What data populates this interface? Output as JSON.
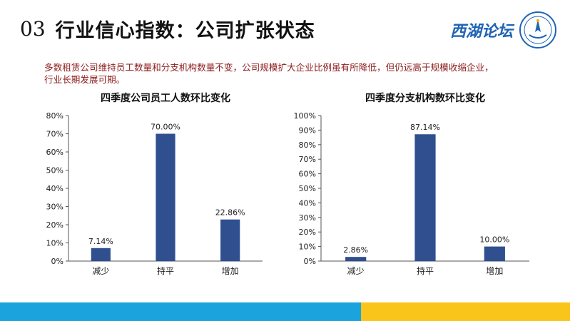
{
  "header": {
    "number": "03",
    "title": "行业信心指数：公司扩张状态",
    "logo_text": "西湖论坛"
  },
  "description": "多数租赁公司维持员工数量和分支机构数量不变，公司规模扩大企业比例虽有所降低，但仍远高于规模收缩企业，行业长期发展可期。",
  "colors": {
    "bar": "#2f4f8f",
    "footer_left": "#1aa3dc",
    "footer_right": "#f9c51a"
  },
  "chart_data": [
    {
      "type": "bar",
      "title": "四季度公司员工人数环比变化",
      "categories": [
        "减少",
        "持平",
        "增加"
      ],
      "values": [
        7.14,
        70.0,
        22.86
      ],
      "data_labels": [
        "7.14%",
        "70.00%",
        "22.86%"
      ],
      "ylim": [
        0,
        80
      ],
      "yticks": [
        "0%",
        "10%",
        "20%",
        "30%",
        "40%",
        "50%",
        "60%",
        "70%",
        "80%"
      ],
      "grid": false,
      "legend": "none"
    },
    {
      "type": "bar",
      "title": "四季度分支机构数环比变化",
      "categories": [
        "减少",
        "持平",
        "增加"
      ],
      "values": [
        2.86,
        87.14,
        10.0
      ],
      "data_labels": [
        "2.86%",
        "87.14%",
        "10.00%"
      ],
      "ylim": [
        0,
        100
      ],
      "yticks": [
        "0%",
        "10%",
        "20%",
        "30%",
        "40%",
        "50%",
        "60%",
        "70%",
        "80%",
        "90%",
        "100%"
      ],
      "grid": false,
      "legend": "none"
    }
  ]
}
